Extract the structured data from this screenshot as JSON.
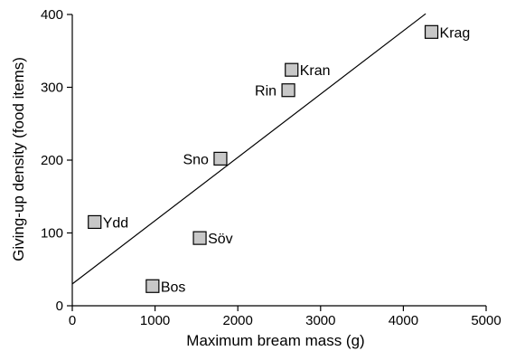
{
  "chart_data": {
    "type": "scatter",
    "title": "",
    "xlabel": "Maximum bream mass (g)",
    "ylabel": "Giving-up density (food items)",
    "xlim": [
      0,
      5000
    ],
    "ylim": [
      0,
      400
    ],
    "xticks": [
      0,
      1000,
      2000,
      3000,
      4000,
      5000
    ],
    "yticks": [
      0,
      100,
      200,
      300,
      400
    ],
    "x_tick_labels": [
      "0",
      "1000",
      "2000",
      "3000",
      "4000",
      "5000"
    ],
    "y_tick_labels": [
      "0",
      "100",
      "200",
      "300",
      "400"
    ],
    "grid": false,
    "legend": "none",
    "marker_color": "#c8c8c8",
    "points": [
      {
        "label": "Ydd",
        "x": 270,
        "y": 115,
        "label_side": "right"
      },
      {
        "label": "Bos",
        "x": 970,
        "y": 27,
        "label_side": "right"
      },
      {
        "label": "Söv",
        "x": 1540,
        "y": 93,
        "label_side": "right"
      },
      {
        "label": "Sno",
        "x": 1790,
        "y": 202,
        "label_side": "left"
      },
      {
        "label": "Rin",
        "x": 2610,
        "y": 296,
        "label_side": "left"
      },
      {
        "label": "Kran",
        "x": 2650,
        "y": 324,
        "label_side": "right"
      },
      {
        "label": "Krag",
        "x": 4340,
        "y": 376,
        "label_side": "right"
      }
    ],
    "fit_line": {
      "x": [
        0,
        4270
      ],
      "y": [
        30,
        401
      ]
    }
  }
}
